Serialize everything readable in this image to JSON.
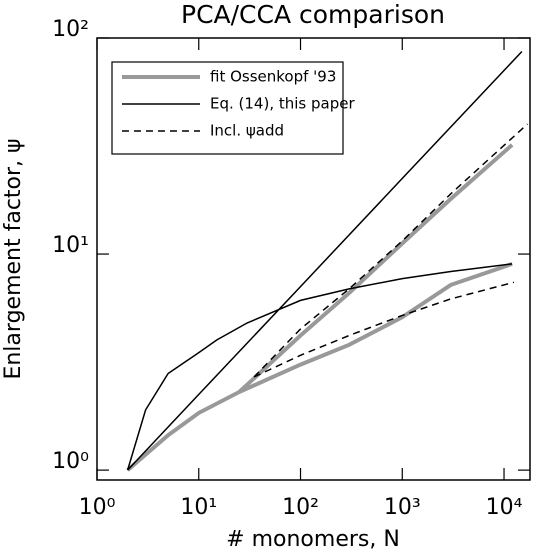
{
  "chart_data": {
    "type": "line",
    "title": "PCA/CCA comparison",
    "x_label": "# monomers, N",
    "y_label": "Enlargement factor, ψ",
    "xscale": "log",
    "yscale": "log",
    "xlim": [
      1,
      18000
    ],
    "ylim": [
      0.9,
      100
    ],
    "xticks": [
      {
        "value": 1,
        "label": "10⁰"
      },
      {
        "value": 10,
        "label": "10¹"
      },
      {
        "value": 100,
        "label": "10²"
      },
      {
        "value": 1000,
        "label": "10³"
      },
      {
        "value": 10000,
        "label": "10⁴"
      }
    ],
    "yticks": [
      {
        "value": 1,
        "label": "10⁰"
      },
      {
        "value": 10,
        "label": "10¹"
      },
      {
        "value": 100,
        "label": "10²"
      }
    ],
    "legend": "upper-left",
    "series": [
      {
        "name": "fit Ossenkopf '93",
        "color": "#999999",
        "width": 4,
        "dash": "none",
        "x": [
          2,
          5,
          10,
          25,
          100,
          300,
          1000,
          3000,
          12000,
          null,
          25,
          100,
          300,
          1000,
          3000,
          12000
        ],
        "values": [
          1,
          1.45,
          1.84,
          2.3,
          3.08,
          3.8,
          5.1,
          7.2,
          9,
          null,
          2.3,
          4.2,
          6.6,
          11.2,
          18,
          32
        ]
      },
      {
        "name": "Eq. (14), this paper",
        "color": "#000000",
        "width": 1.5,
        "dash": "none",
        "x": [
          2,
          10,
          100,
          1000,
          10000,
          15000,
          null,
          2,
          3,
          5,
          10,
          15,
          30,
          100,
          300,
          1000,
          3000,
          12000
        ],
        "values": [
          1,
          2.24,
          7.07,
          22.4,
          70.7,
          86.6,
          null,
          1,
          1.9,
          2.8,
          3.5,
          4,
          4.8,
          6.1,
          6.9,
          7.7,
          8.3,
          9
        ]
      },
      {
        "name": "Incl. ψadd",
        "color": "#000000",
        "width": 1.5,
        "dash": "7,5",
        "x": [
          35,
          100,
          300,
          1000,
          3000,
          12500,
          null,
          35,
          100,
          300,
          1000,
          3000,
          17000
        ],
        "values": [
          2.7,
          3.4,
          4.2,
          5.2,
          6.2,
          7.4,
          null,
          2.7,
          4.5,
          6.9,
          11.5,
          19,
          40
        ]
      }
    ]
  }
}
